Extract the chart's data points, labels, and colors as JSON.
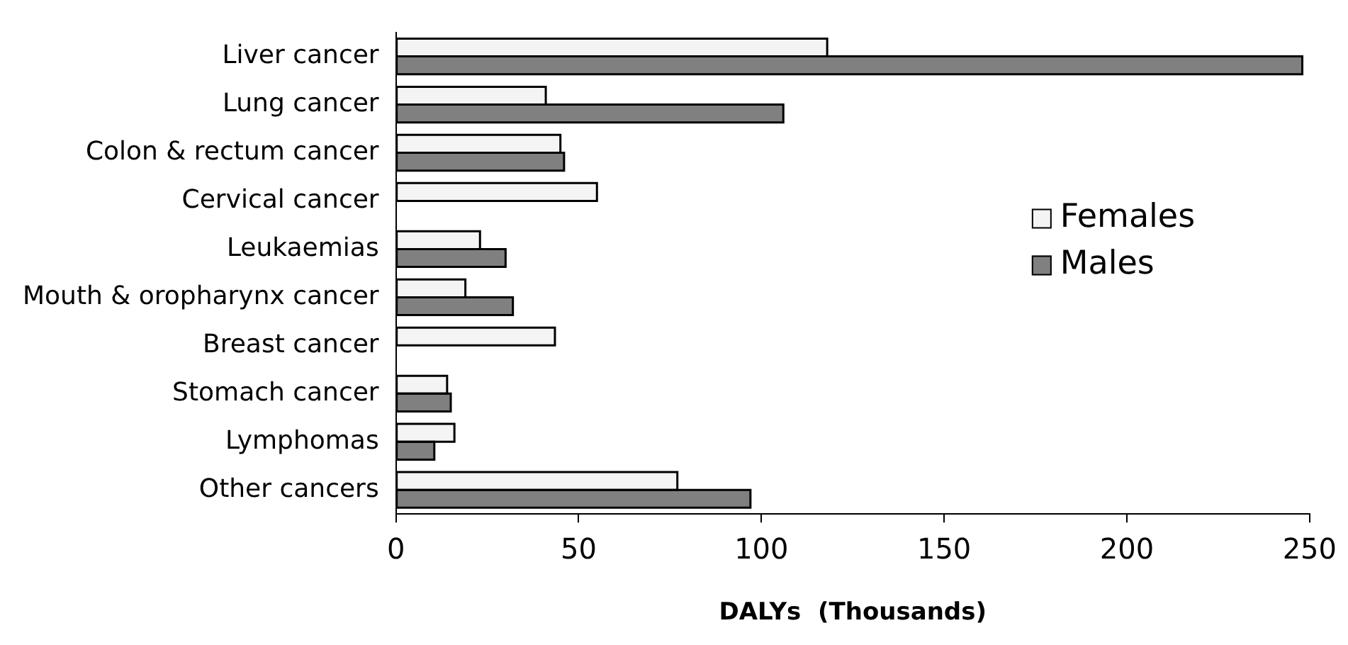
{
  "chart_data": {
    "type": "bar",
    "orientation": "horizontal",
    "xlabel": "DALYs  (Thousands)",
    "categories": [
      "Liver cancer",
      "Lung cancer",
      "Colon & rectum cancer",
      "Cervical cancer",
      "Leukaemias",
      "Mouth & oropharynx cancer",
      "Breast cancer",
      "Stomach cancer",
      "Lymphomas",
      "Other cancers"
    ],
    "series": [
      {
        "name": "Females",
        "color": "#f4f4f4",
        "values": [
          118,
          41,
          45,
          55,
          23,
          19,
          43.5,
          14,
          16,
          77
        ]
      },
      {
        "name": "Males",
        "color": "#808080",
        "values": [
          248,
          106,
          46,
          null,
          30,
          32,
          null,
          15,
          10.5,
          97
        ]
      }
    ],
    "xlim": [
      0,
      250
    ],
    "xticks": [
      0,
      50,
      100,
      150,
      200,
      250
    ],
    "grid": false,
    "legend": "right"
  }
}
